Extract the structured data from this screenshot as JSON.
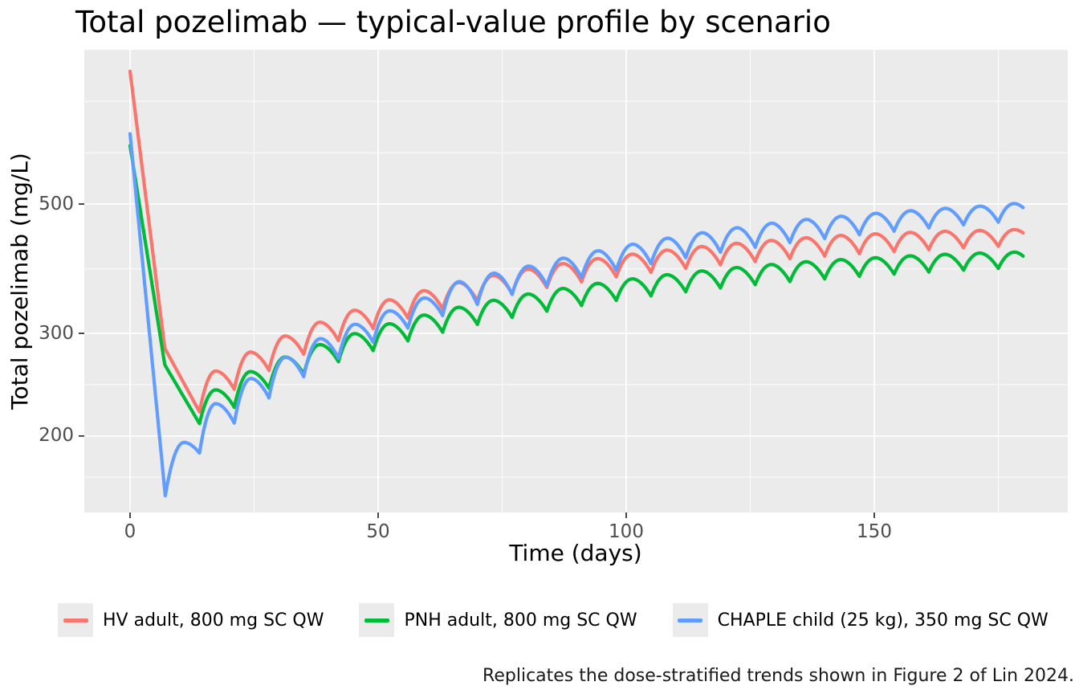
{
  "title": "Total pozelimab — typical-value profile by scenario",
  "caption": "Replicates the dose-stratified trends shown in Figure 2 of Lin 2024.",
  "legend": {
    "items": [
      {
        "label": "HV adult, 800 mg SC QW",
        "color": "#F8766D"
      },
      {
        "label": "PNH adult, 800 mg SC QW",
        "color": "#00BA38"
      },
      {
        "label": "CHAPLE child (25 kg), 350 mg SC QW",
        "color": "#619CFF"
      }
    ]
  },
  "chart_data": {
    "type": "line",
    "title": "Total pozelimab — typical-value profile by scenario",
    "xlabel": "Time (days)",
    "ylabel": "Total pozelimab (mg/L)",
    "x_axis": {
      "ticks": [
        {
          "value": 0,
          "label": "0"
        },
        {
          "value": 50,
          "label": "50"
        },
        {
          "value": 100,
          "label": "100"
        },
        {
          "value": 150,
          "label": "150"
        }
      ],
      "minor_gridline_values": [
        25,
        75,
        125,
        175
      ],
      "range_days": [
        -9,
        189
      ]
    },
    "y_axis": {
      "scale": "log10",
      "units": "mg/L",
      "ticks": [
        {
          "value": 200,
          "label": "200"
        },
        {
          "value": 300,
          "label": "300"
        },
        {
          "value": 500,
          "label": "500"
        }
      ],
      "minor_gridline_values": [
        170,
        245,
        387,
        612,
        750
      ],
      "range": [
        145,
        915
      ]
    },
    "panel": {
      "background": "#EBEBEB",
      "grid_major_color": "#FFFFFF",
      "grid_minor_color": "#FFFFFF"
    },
    "legend_position": "bottom",
    "anchor_types": {
      "s": "start",
      "t": "trough at weekly dose",
      "p": "post-dose peak",
      "e": "end of profile"
    },
    "dosing_interval_days": 7,
    "series": [
      {
        "name": "HV adult, 800 mg SC QW",
        "color": "#F8766D",
        "anchors": [
          [
            0,
            845,
            "s"
          ],
          [
            7,
            283,
            "t"
          ],
          [
            14,
            220,
            "t"
          ],
          [
            17.3,
            258.5,
            "p"
          ],
          [
            21,
            240.5,
            "t"
          ],
          [
            24.3,
            278.6,
            "p"
          ],
          [
            28,
            259.2,
            "t"
          ],
          [
            31.3,
            296.9,
            "p"
          ],
          [
            35,
            276.2,
            "t"
          ],
          [
            38.3,
            313.5,
            "p"
          ],
          [
            42,
            291.6,
            "t"
          ],
          [
            45.3,
            328.7,
            "p"
          ],
          [
            49,
            305.8,
            "t"
          ],
          [
            52.3,
            342.5,
            "p"
          ],
          [
            56,
            318.6,
            "t"
          ],
          [
            59.3,
            355.1,
            "p"
          ],
          [
            63,
            330.3,
            "t"
          ],
          [
            66.3,
            366.6,
            "p"
          ],
          [
            70,
            341,
            "t"
          ],
          [
            73.3,
            377,
            "p"
          ],
          [
            77,
            350.7,
            "t"
          ],
          [
            80.3,
            386.6,
            "p"
          ],
          [
            84,
            359.6,
            "t"
          ],
          [
            87.3,
            395.2,
            "p"
          ],
          [
            91,
            367.6,
            "t"
          ],
          [
            94.3,
            403.1,
            "p"
          ],
          [
            98,
            375,
            "t"
          ],
          [
            101.3,
            410.2,
            "p"
          ],
          [
            105,
            381.6,
            "t"
          ],
          [
            108.3,
            416.8,
            "p"
          ],
          [
            112,
            387.7,
            "t"
          ],
          [
            115.3,
            422.8,
            "p"
          ],
          [
            119,
            393.3,
            "t"
          ],
          [
            122.3,
            428.2,
            "p"
          ],
          [
            126,
            398.3,
            "t"
          ],
          [
            129.3,
            433.1,
            "p"
          ],
          [
            133,
            402.9,
            "t"
          ],
          [
            136.3,
            437.6,
            "p"
          ],
          [
            140,
            407.1,
            "t"
          ],
          [
            143.3,
            441.7,
            "p"
          ],
          [
            147,
            410.9,
            "t"
          ],
          [
            150.3,
            444.5,
            "p"
          ],
          [
            154,
            414.4,
            "t"
          ],
          [
            157.3,
            447,
            "p"
          ],
          [
            161,
            417.6,
            "t"
          ],
          [
            164.3,
            449,
            "p"
          ],
          [
            168,
            420.5,
            "t"
          ],
          [
            171.3,
            450.5,
            "p"
          ],
          [
            175,
            423.1,
            "t"
          ],
          [
            178.3,
            452,
            "p"
          ],
          [
            180,
            446,
            "e"
          ]
        ]
      },
      {
        "name": "PNH adult, 800 mg SC QW",
        "color": "#00BA38",
        "anchors": [
          [
            0,
            630,
            "s"
          ],
          [
            7,
            265,
            "t"
          ],
          [
            14,
            210,
            "t"
          ],
          [
            17.3,
            240,
            "p"
          ],
          [
            21,
            224,
            "t"
          ],
          [
            24.3,
            258,
            "p"
          ],
          [
            28,
            241.5,
            "t"
          ],
          [
            31.3,
            273.3,
            "p"
          ],
          [
            35,
            255.4,
            "t"
          ],
          [
            38.3,
            287,
            "p"
          ],
          [
            42,
            268.2,
            "t"
          ],
          [
            45.3,
            299.7,
            "p"
          ],
          [
            49,
            280.2,
            "t"
          ],
          [
            52.3,
            311.6,
            "p"
          ],
          [
            56,
            291.2,
            "t"
          ],
          [
            59.3,
            322.5,
            "p"
          ],
          [
            63,
            301.4,
            "t"
          ],
          [
            66.3,
            332.6,
            "p"
          ],
          [
            70,
            310.8,
            "t"
          ],
          [
            73.3,
            341.9,
            "p"
          ],
          [
            77,
            319.5,
            "t"
          ],
          [
            80.3,
            350.4,
            "p"
          ],
          [
            84,
            327.5,
            "t"
          ],
          [
            87.3,
            358.2,
            "p"
          ],
          [
            91,
            334.8,
            "t"
          ],
          [
            94.3,
            365.5,
            "p"
          ],
          [
            98,
            341.6,
            "t"
          ],
          [
            101.3,
            372.1,
            "p"
          ],
          [
            105,
            347.8,
            "t"
          ],
          [
            108.3,
            378.2,
            "p"
          ],
          [
            112,
            353.5,
            "t"
          ],
          [
            115.3,
            383.9,
            "p"
          ],
          [
            119,
            358.8,
            "t"
          ],
          [
            122.3,
            389.1,
            "p"
          ],
          [
            126,
            363.6,
            "t"
          ],
          [
            129.3,
            393.8,
            "p"
          ],
          [
            133,
            368,
            "t"
          ],
          [
            136.3,
            398.1,
            "p"
          ],
          [
            140,
            372,
            "t"
          ],
          [
            143.3,
            401.5,
            "p"
          ],
          [
            147,
            375.7,
            "t"
          ],
          [
            150.3,
            404.5,
            "p"
          ],
          [
            154,
            379.1,
            "t"
          ],
          [
            157.3,
            407.5,
            "p"
          ],
          [
            161,
            382.2,
            "t"
          ],
          [
            164.3,
            410,
            "p"
          ],
          [
            168,
            385,
            "t"
          ],
          [
            171.3,
            412,
            "p"
          ],
          [
            175,
            387.6,
            "t"
          ],
          [
            178.3,
            413.5,
            "p"
          ],
          [
            180,
            407,
            "e"
          ]
        ]
      },
      {
        "name": "CHAPLE child (25 kg), 350 mg SC QW",
        "color": "#619CFF",
        "anchors": [
          [
            0,
            660,
            "s"
          ],
          [
            7.1,
            158,
            "t"
          ],
          [
            10.9,
            195,
            "p"
          ],
          [
            14,
            187,
            "t"
          ],
          [
            17.3,
            227.3,
            "p"
          ],
          [
            21,
            210.5,
            "t"
          ],
          [
            24.4,
            251,
            "p"
          ],
          [
            28,
            232.4,
            "t"
          ],
          [
            31.4,
            273,
            "p"
          ],
          [
            35,
            252.8,
            "t"
          ],
          [
            38.4,
            293.8,
            "p"
          ],
          [
            42,
            272,
            "t"
          ],
          [
            45.4,
            311,
            "p"
          ],
          [
            49,
            289.7,
            "t"
          ],
          [
            52.4,
            328,
            "p"
          ],
          [
            56,
            306.4,
            "t"
          ],
          [
            59.4,
            345,
            "p"
          ],
          [
            63,
            321.8,
            "t"
          ],
          [
            66.4,
            368,
            "p"
          ],
          [
            70,
            336.3,
            "t"
          ],
          [
            73.4,
            380.5,
            "p"
          ],
          [
            77,
            349.7,
            "t"
          ],
          [
            80.4,
            391.3,
            "p"
          ],
          [
            84,
            362.3,
            "t"
          ],
          [
            87.4,
            403.8,
            "p"
          ],
          [
            91,
            373.9,
            "t"
          ],
          [
            94.4,
            415.7,
            "p"
          ],
          [
            98,
            384.9,
            "t"
          ],
          [
            101.4,
            426.6,
            "p"
          ],
          [
            105,
            395,
            "t"
          ],
          [
            108.4,
            436.9,
            "p"
          ],
          [
            112,
            404.5,
            "t"
          ],
          [
            115.4,
            446.4,
            "p"
          ],
          [
            119,
            413.3,
            "t"
          ],
          [
            122.4,
            455.2,
            "p"
          ],
          [
            126,
            421.5,
            "t"
          ],
          [
            129.4,
            463.5,
            "p"
          ],
          [
            133,
            429.2,
            "t"
          ],
          [
            136.4,
            470.5,
            "p"
          ],
          [
            140,
            436.3,
            "t"
          ],
          [
            143.4,
            476.5,
            "p"
          ],
          [
            147,
            443,
            "t"
          ],
          [
            150.4,
            482,
            "p"
          ],
          [
            154,
            449.2,
            "t"
          ],
          [
            157.4,
            487,
            "p"
          ],
          [
            161,
            455,
            "t"
          ],
          [
            164.4,
            491.5,
            "p"
          ],
          [
            168,
            460.4,
            "t"
          ],
          [
            171.4,
            496,
            "p"
          ],
          [
            175,
            465.4,
            "t"
          ],
          [
            178.2,
            501,
            "p"
          ],
          [
            180,
            493,
            "e"
          ]
        ]
      }
    ]
  }
}
